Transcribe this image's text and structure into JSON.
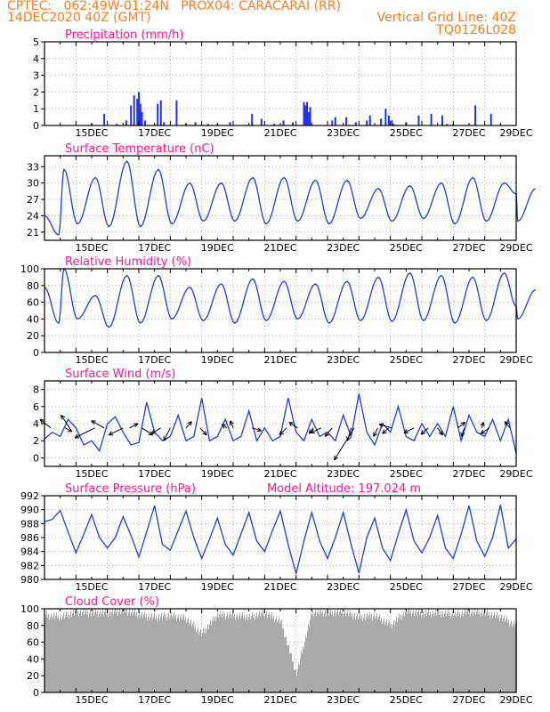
{
  "header": {
    "line1": "CPTEC:   062:49W-01:24N   PROX04: CARACARAI (RR)",
    "line2_left": "14DEC2020 40Z (GMT)",
    "line2_right": "Vertical Grid Line: 40Z",
    "line3_right": "TQ0126L028"
  },
  "colors": {
    "header": "#ff7a1a",
    "title": "#ff1493",
    "series": "#1f3de0",
    "bars": "#2030ff",
    "cloud": "#aaaaaa"
  },
  "chart_data": [
    {
      "type": "bar",
      "title": "Precipitation (mm/h)",
      "x_tick_labels": [
        "15DEC",
        "17DEC",
        "19DEC",
        "21DEC",
        "23DEC",
        "25DEC",
        "27DEC",
        "29DEC"
      ],
      "y_ticks": [
        0,
        1,
        2,
        3,
        4,
        5
      ],
      "ylim": [
        0,
        5
      ],
      "x": [
        1.5,
        1.9,
        2.3,
        2.6,
        2.75,
        2.85,
        2.95,
        3.0,
        3.05,
        3.1,
        3.2,
        3.6,
        3.7,
        3.8,
        4.2,
        4.5,
        4.8,
        5.2,
        5.5,
        5.9,
        6.6,
        6.9,
        7.3,
        7.6,
        7.9,
        8.25,
        8.3,
        8.35,
        8.4,
        8.45,
        9.15,
        9.25,
        9.6,
        9.9,
        10.25,
        10.35,
        10.7,
        10.85,
        10.95,
        11.05,
        11.1,
        11.5,
        11.9,
        12.3,
        12.65,
        12.8,
        13.0,
        13.7,
        14.2
      ],
      "values": [
        0.1,
        0.7,
        0.1,
        0.3,
        1.2,
        1.8,
        1.6,
        2.0,
        1.3,
        0.8,
        0.3,
        1.3,
        1.5,
        0.2,
        1.5,
        0.1,
        0.2,
        0.1,
        0.1,
        0.2,
        0.7,
        0.4,
        0.1,
        0.3,
        0.2,
        1.4,
        1.2,
        1.4,
        0.8,
        1.1,
        0.3,
        0.5,
        0.5,
        0.2,
        0.3,
        0.6,
        0.4,
        1.0,
        0.6,
        0.3,
        0.1,
        0.2,
        0.6,
        0.7,
        0.6,
        0.1,
        0.1,
        1.2,
        0.7
      ]
    },
    {
      "type": "line",
      "title": "Surface Temperature (nC)",
      "x_tick_labels": [
        "15DEC",
        "17DEC",
        "19DEC",
        "21DEC",
        "23DEC",
        "25DEC",
        "27DEC",
        "29DEC"
      ],
      "y_ticks": [
        21,
        24,
        27,
        30,
        33
      ],
      "ylim": [
        19.5,
        35
      ],
      "daily_max": [
        32.5,
        31.0,
        34.0,
        32.5,
        30.0,
        30.0,
        31.0,
        31.0,
        30.5,
        30.5,
        29.0,
        29.5,
        30.0,
        31.0,
        30.0,
        29.0
      ],
      "daily_min": [
        20.5,
        22.5,
        22.0,
        22.0,
        22.5,
        23.0,
        23.0,
        22.5,
        23.0,
        22.5,
        23.5,
        23.0,
        23.5,
        22.5,
        23.0,
        23.0
      ],
      "start_value": 24.0,
      "end_value": 28.0
    },
    {
      "type": "line",
      "title": "Relative Humidity (%)",
      "x_tick_labels": [
        "15DEC",
        "17DEC",
        "19DEC",
        "21DEC",
        "23DEC",
        "25DEC",
        "27DEC",
        "29DEC"
      ],
      "y_ticks": [
        0,
        20,
        40,
        60,
        80,
        100
      ],
      "ylim": [
        0,
        100
      ],
      "daily_max": [
        100,
        68,
        92,
        92,
        78,
        82,
        88,
        85,
        82,
        85,
        90,
        95,
        92,
        90,
        95,
        75
      ],
      "daily_min": [
        35,
        40,
        30,
        35,
        40,
        38,
        35,
        38,
        40,
        35,
        38,
        37,
        38,
        35,
        38,
        40
      ],
      "start_value": 78,
      "end_value": 55
    },
    {
      "type": "line",
      "title": "Surface Wind (m/s)",
      "x_tick_labels": [
        "15DEC",
        "17DEC",
        "19DEC",
        "21DEC",
        "23DEC",
        "25DEC",
        "27DEC",
        "29DEC"
      ],
      "y_ticks": [
        0,
        2,
        4,
        6,
        8
      ],
      "ylim": [
        -1,
        9
      ],
      "x": [
        0,
        0.25,
        0.5,
        0.75,
        1.0,
        1.25,
        1.5,
        1.75,
        2.0,
        2.25,
        2.5,
        2.75,
        3.0,
        3.25,
        3.5,
        3.75,
        4.0,
        4.25,
        4.5,
        4.75,
        5.0,
        5.25,
        5.5,
        5.75,
        6.0,
        6.25,
        6.5,
        6.75,
        7.0,
        7.25,
        7.5,
        7.75,
        8.0,
        8.25,
        8.5,
        8.75,
        9.0,
        9.25,
        9.5,
        9.75,
        10.0,
        10.25,
        10.5,
        10.75,
        11.0,
        11.25,
        11.5,
        11.75,
        12.0,
        12.25,
        12.5,
        12.75,
        13.0,
        13.25,
        13.5,
        13.75,
        14.0,
        14.25,
        14.5,
        14.75,
        15.0
      ],
      "values": [
        2.2,
        3.0,
        2.5,
        4.5,
        3.5,
        1.5,
        2.0,
        0.8,
        4.0,
        4.8,
        3.0,
        1.5,
        1.8,
        6.5,
        3.0,
        2.0,
        2.5,
        5.0,
        2.0,
        2.5,
        7.0,
        2.0,
        2.5,
        4.5,
        2.0,
        2.5,
        5.5,
        2.0,
        3.5,
        2.0,
        2.5,
        7.0,
        3.0,
        2.0,
        4.5,
        2.5,
        3.0,
        2.0,
        5.0,
        2.5,
        7.5,
        3.0,
        1.5,
        4.0,
        3.0,
        6.0,
        2.5,
        2.0,
        4.0,
        2.5,
        4.0,
        2.5,
        6.0,
        2.0,
        5.0,
        3.0,
        2.5,
        4.5,
        2.0,
        4.5,
        0.5
      ],
      "wind_vectors": [
        {
          "t": 0.2,
          "u": -1.5,
          "v": 1.2
        },
        {
          "t": 0.65,
          "u": 1.0,
          "v": -0.5
        },
        {
          "t": 0.8,
          "u": -1.2,
          "v": 1.8
        },
        {
          "t": 1.6,
          "u": -2.8,
          "v": -1.4
        },
        {
          "t": 1.9,
          "u": -1.8,
          "v": 1.0
        },
        {
          "t": 2.5,
          "u": -2.0,
          "v": -1.0
        },
        {
          "t": 2.7,
          "u": 1.2,
          "v": 0.6
        },
        {
          "t": 3.1,
          "u": 1.5,
          "v": -1.0
        },
        {
          "t": 3.7,
          "u": -1.3,
          "v": -0.8
        },
        {
          "t": 4.0,
          "u": -0.9,
          "v": -1.8
        },
        {
          "t": 4.5,
          "u": 0.8,
          "v": 0.9
        },
        {
          "t": 4.95,
          "u": 0.9,
          "v": -1.0
        },
        {
          "t": 5.8,
          "u": -0.7,
          "v": 0.5
        },
        {
          "t": 6.0,
          "u": -0.4,
          "v": 1.0
        },
        {
          "t": 6.6,
          "u": 1.3,
          "v": -0.4
        },
        {
          "t": 7.7,
          "u": -1.0,
          "v": -1.0
        },
        {
          "t": 8.05,
          "u": -1.2,
          "v": 0.8
        },
        {
          "t": 8.55,
          "u": -0.6,
          "v": -0.8
        },
        {
          "t": 8.8,
          "u": -1.5,
          "v": -0.7
        },
        {
          "t": 9.15,
          "u": -1.0,
          "v": -1.2
        },
        {
          "t": 9.75,
          "u": -0.5,
          "v": -1.8
        },
        {
          "t": 9.85,
          "u": -2.8,
          "v": -4.5
        },
        {
          "t": 10.6,
          "u": -0.6,
          "v": -1.2
        },
        {
          "t": 10.95,
          "u": -0.9,
          "v": -0.8
        },
        {
          "t": 11.05,
          "u": -1.8,
          "v": 0.5
        },
        {
          "t": 11.75,
          "u": -1.4,
          "v": -0.7
        },
        {
          "t": 12.2,
          "u": -1.0,
          "v": -0.9
        },
        {
          "t": 12.5,
          "u": 0.7,
          "v": -1.0
        },
        {
          "t": 13.15,
          "u": 1.0,
          "v": 0.8
        },
        {
          "t": 13.35,
          "u": -0.4,
          "v": -1.2
        },
        {
          "t": 13.9,
          "u": 0.3,
          "v": 0.8
        },
        {
          "t": 14.15,
          "u": -1.2,
          "v": -0.8
        },
        {
          "t": 14.8,
          "u": -0.7,
          "v": 0.9
        }
      ]
    },
    {
      "type": "line",
      "title": "Surface Pressure (hPa)",
      "annotation": "Model Altitude: 197.024 m",
      "x_tick_labels": [
        "15DEC",
        "17DEC",
        "19DEC",
        "21DEC",
        "23DEC",
        "25DEC",
        "27DEC",
        "29DEC"
      ],
      "y_ticks": [
        980,
        982,
        984,
        986,
        988,
        990,
        992
      ],
      "ylim": [
        980,
        992
      ],
      "x": [
        0,
        0.25,
        0.5,
        0.75,
        1.0,
        1.25,
        1.5,
        1.75,
        2.0,
        2.25,
        2.5,
        2.75,
        3.0,
        3.25,
        3.5,
        3.75,
        4.0,
        4.25,
        4.5,
        4.75,
        5.0,
        5.25,
        5.5,
        5.75,
        6.0,
        6.25,
        6.5,
        6.75,
        7.0,
        7.25,
        7.5,
        7.75,
        8.0,
        8.25,
        8.5,
        8.75,
        9.0,
        9.25,
        9.5,
        9.75,
        10.0,
        10.25,
        10.5,
        10.75,
        11.0,
        11.25,
        11.5,
        11.75,
        12.0,
        12.25,
        12.5,
        12.75,
        13.0,
        13.25,
        13.5,
        13.75,
        14.0,
        14.25,
        14.5,
        14.75,
        15.0
      ],
      "values": [
        988.3,
        988.6,
        989.9,
        986.8,
        983.8,
        986.5,
        989.3,
        986.0,
        984.5,
        986.0,
        989.0,
        986.3,
        983.2,
        986.8,
        990.6,
        985.0,
        984.2,
        987.0,
        989.8,
        986.0,
        983.0,
        985.8,
        988.8,
        985.0,
        983.5,
        986.5,
        989.6,
        985.5,
        984.0,
        987.0,
        989.8,
        985.0,
        980.8,
        985.5,
        989.6,
        985.5,
        983.0,
        986.0,
        989.6,
        985.0,
        980.9,
        986.0,
        988.8,
        984.5,
        982.7,
        986.5,
        990.0,
        985.5,
        983.8,
        986.0,
        989.2,
        984.5,
        983.0,
        986.5,
        990.6,
        985.5,
        983.3,
        986.0,
        990.7,
        984.5,
        985.8
      ]
    },
    {
      "type": "area",
      "title": "Cloud Cover (%)",
      "x_tick_labels": [
        "15DEC",
        "17DEC",
        "19DEC",
        "21DEC",
        "23DEC",
        "25DEC",
        "27DEC",
        "29DEC"
      ],
      "y_ticks": [
        0,
        20,
        40,
        60,
        80,
        100
      ],
      "ylim": [
        0,
        100
      ],
      "x": [
        0,
        0.5,
        1.0,
        1.5,
        2.0,
        2.5,
        3.0,
        3.5,
        4.0,
        4.5,
        5.0,
        5.5,
        6.0,
        6.5,
        7.0,
        7.5,
        8.0,
        8.5,
        9.0,
        9.5,
        10.0,
        10.5,
        11.0,
        11.5,
        12.0,
        12.5,
        13.0,
        13.5,
        14.0,
        14.5,
        15.0
      ],
      "values": [
        92,
        90,
        96,
        95,
        95,
        98,
        93,
        90,
        92,
        88,
        70,
        93,
        92,
        90,
        95,
        85,
        22,
        96,
        95,
        96,
        90,
        92,
        80,
        97,
        94,
        95,
        93,
        96,
        95,
        90,
        80
      ]
    }
  ]
}
